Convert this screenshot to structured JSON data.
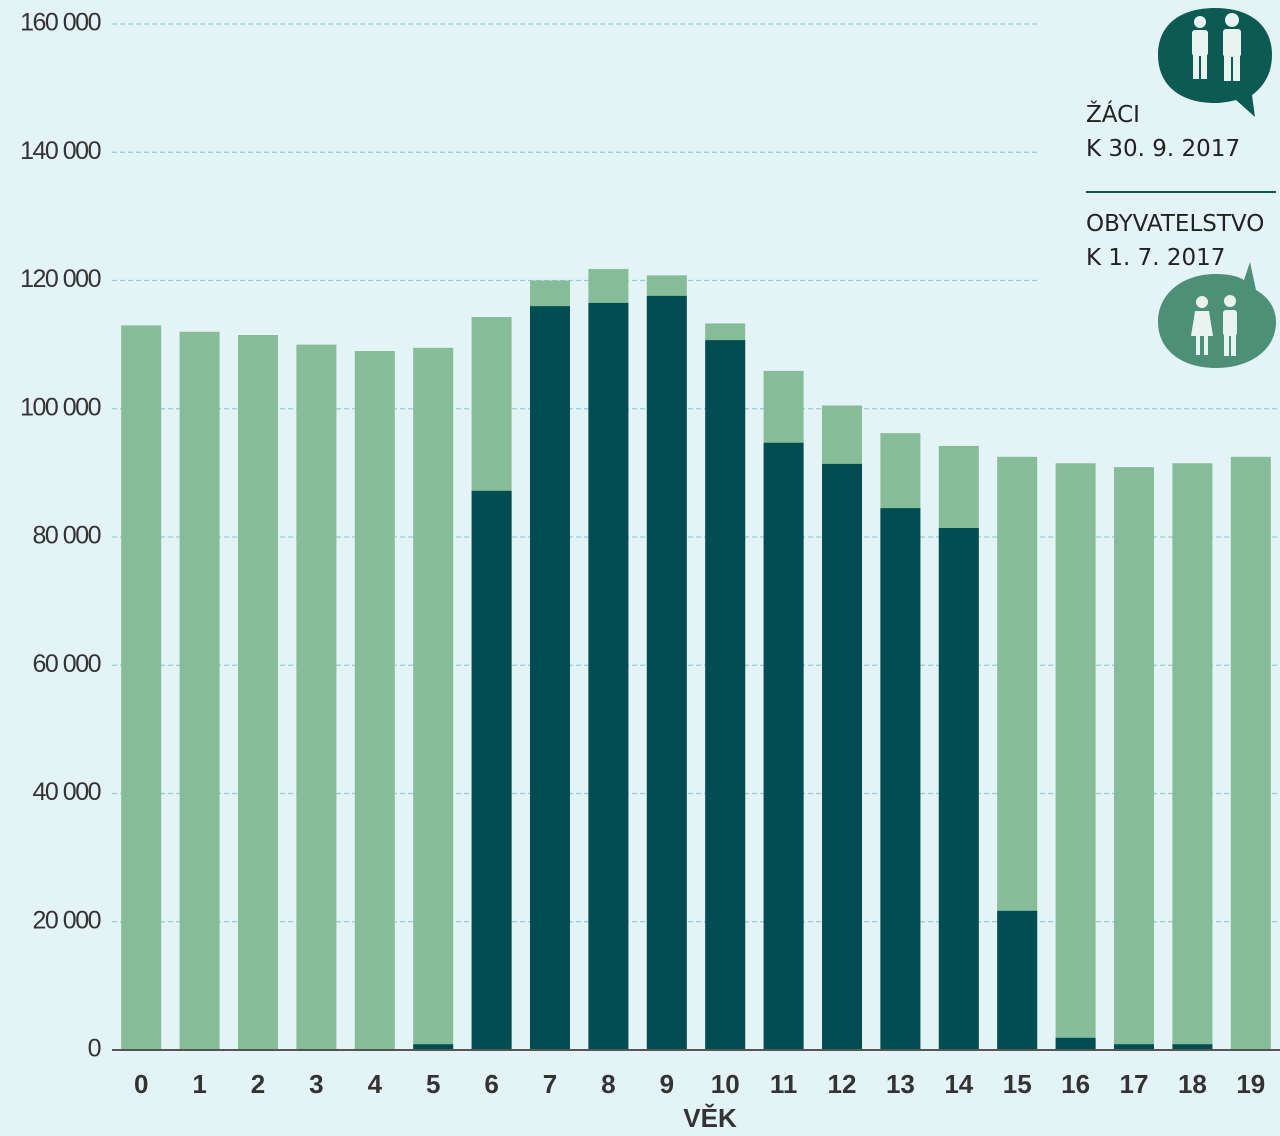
{
  "chart_data": {
    "type": "bar",
    "overlap": true,
    "x_label": "VĚK",
    "categories": [
      "0",
      "1",
      "2",
      "3",
      "4",
      "5",
      "6",
      "7",
      "8",
      "9",
      "10",
      "11",
      "12",
      "13",
      "14",
      "15",
      "16",
      "17",
      "18",
      "19"
    ],
    "series": [
      {
        "name": "OBYVATELSTVO\nK 1. 7. 2017",
        "color": "#86bc98",
        "values": [
          113000,
          112000,
          111500,
          110000,
          109000,
          109500,
          114300,
          120000,
          121800,
          120800,
          113300,
          105900,
          100500,
          96200,
          94200,
          92500,
          91500,
          90900,
          91500,
          92500
        ]
      },
      {
        "name": "ŽÁCI\nK 30. 9. 2017",
        "color": "#024d51",
        "values": [
          0,
          0,
          0,
          0,
          0,
          900,
          87200,
          116000,
          116500,
          117600,
          110700,
          94700,
          91400,
          84500,
          81400,
          21700,
          1900,
          900,
          900,
          0
        ]
      }
    ],
    "ylim": [
      0,
      160000
    ],
    "yticks": [
      0,
      {
        "value": 20000,
        "label": "20 000"
      },
      {
        "value": 40000,
        "label": "40 000"
      },
      {
        "value": 60000,
        "label": "60 000"
      },
      {
        "value": 80000,
        "label": "80 000"
      },
      {
        "value": 100000,
        "label": "100 000"
      },
      {
        "value": 120000,
        "label": "120 000"
      },
      {
        "value": 140000,
        "label": "140 000"
      },
      {
        "value": 160000,
        "label": "160 000"
      }
    ],
    "grid": true
  }
}
